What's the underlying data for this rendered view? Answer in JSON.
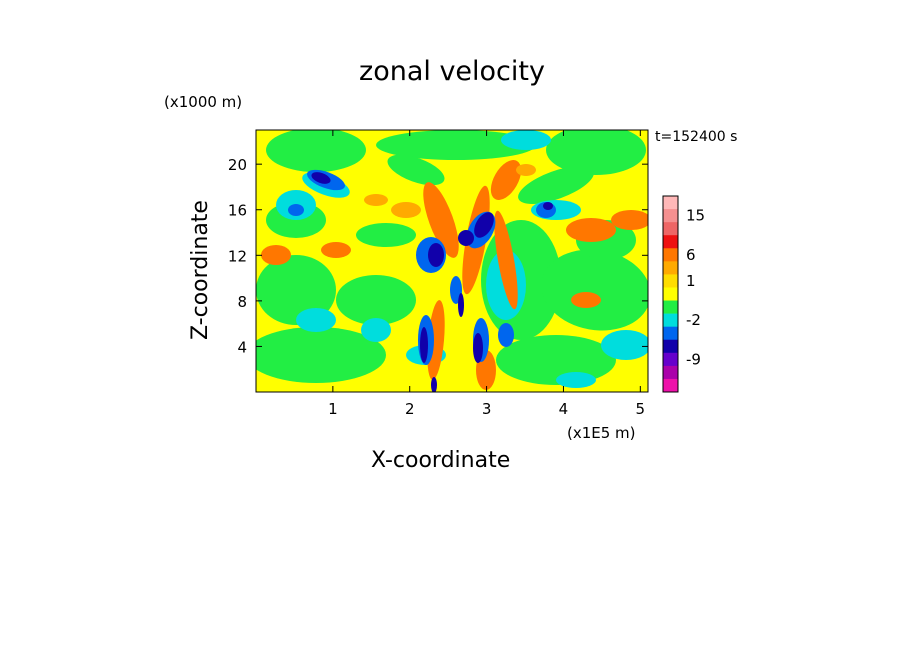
{
  "chart_data": {
    "type": "heatmap",
    "title": "zonal velocity",
    "xlabel": "X-coordinate",
    "ylabel": "Z-coordinate",
    "x_unit": "(x1E5 m)",
    "y_unit": "(x1000 m)",
    "time_label": "t=152400 s",
    "xlim": [
      0,
      5.1
    ],
    "ylim": [
      0,
      23
    ],
    "x_ticks": [
      1,
      2,
      3,
      4,
      5
    ],
    "y_ticks": [
      4,
      8,
      12,
      16,
      20
    ],
    "colorbar": {
      "colors": [
        "#ffb8b8",
        "#f59090",
        "#ee6666",
        "#ee1111",
        "#ff7700",
        "#ffaa00",
        "#ffdd00",
        "#ffff00",
        "#22ee44",
        "#00dddd",
        "#0066ee",
        "#1100aa",
        "#6600cc",
        "#aa00aa",
        "#ee11aa"
      ],
      "tick_labels": [
        "15",
        "6",
        "1",
        "-2",
        "-9"
      ]
    }
  }
}
